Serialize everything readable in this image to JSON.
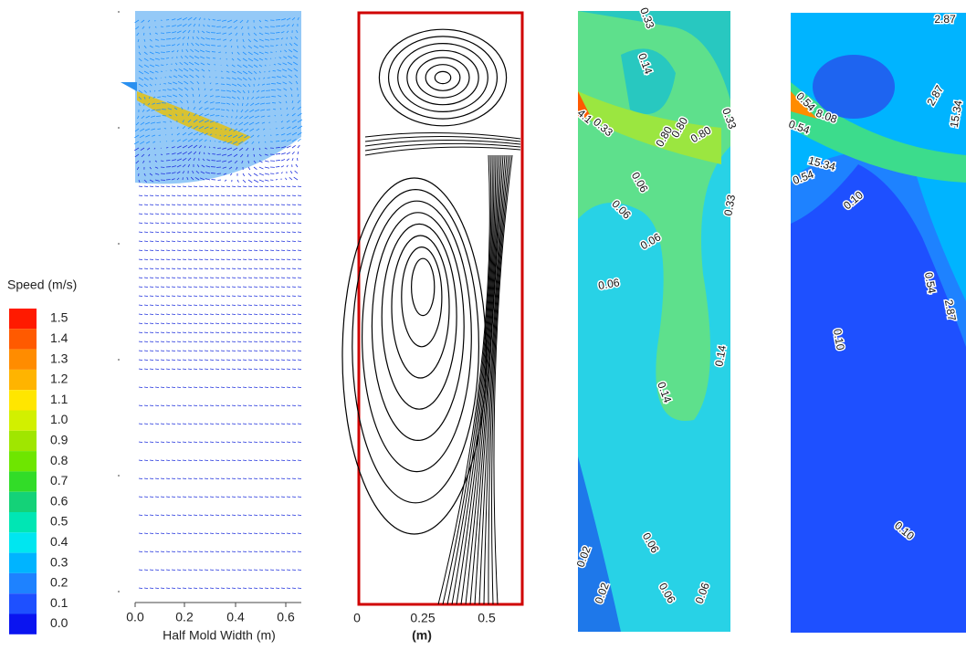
{
  "colorbar": {
    "title": "Speed (m/s)",
    "levels": [
      "1.5",
      "1.4",
      "1.3",
      "1.2",
      "1.1",
      "1.0",
      "0.9",
      "0.8",
      "0.7",
      "0.6",
      "0.5",
      "0.4",
      "0.3",
      "0.2",
      "0.1",
      "0.0"
    ],
    "colors": [
      "#ff1a00",
      "#ff5a00",
      "#ff8c00",
      "#ffb400",
      "#ffe600",
      "#d2f000",
      "#a0e600",
      "#6ee600",
      "#32dc28",
      "#14d278",
      "#00e6b4",
      "#00e6f0",
      "#00b4ff",
      "#1e82ff",
      "#1e50ff",
      "#0a14f0"
    ]
  },
  "panels": [
    {
      "xlabel": "Half Mold Width (m)",
      "xticks": [
        "0.0",
        "0.2",
        "0.4",
        "0.6"
      ]
    },
    {
      "xlabel": "(m)",
      "xticks": [
        "0",
        "0.25",
        "0.5"
      ]
    },
    {
      "contour_labels": [
        "0.33",
        "0.14",
        "0.33",
        "4.1",
        "0.33",
        "0.80",
        "0.80",
        "0.80",
        "0.06",
        "0.33",
        "0.06",
        "0.06",
        "0.06",
        "0.14",
        "0.14",
        "0.02",
        "0.06",
        "0.06",
        "0.02",
        "0.06"
      ]
    },
    {
      "contour_labels": [
        "2.87",
        "2.87",
        "15.34",
        "0.54",
        "8.08",
        "0.54",
        "15.34",
        "0.54",
        "0.10",
        "0.54",
        "2.87",
        "0.10",
        "0.10"
      ]
    }
  ]
}
